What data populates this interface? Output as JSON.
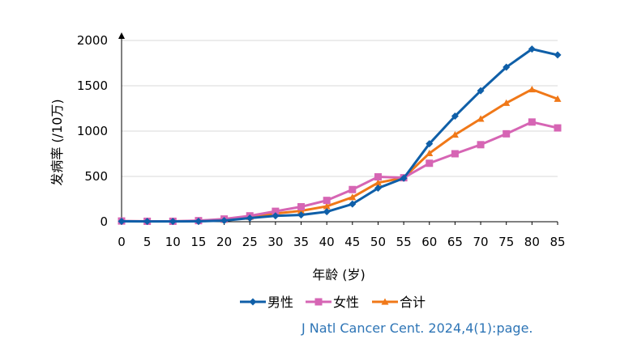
{
  "chart_data": {
    "type": "line",
    "title": "",
    "xlabel": "年龄 (岁)",
    "ylabel": "发病率 (/10万)",
    "x": [
      0,
      5,
      10,
      15,
      20,
      25,
      30,
      35,
      40,
      45,
      50,
      55,
      60,
      65,
      70,
      75,
      80,
      85
    ],
    "ylim": [
      0,
      2000
    ],
    "yticks": [
      0,
      500,
      1000,
      1500,
      2000
    ],
    "grid": true,
    "legend_position": "bottom",
    "series": [
      {
        "name": "男性",
        "color": "#0f5fa8",
        "marker": "diamond",
        "values": [
          5,
          3,
          3,
          5,
          12,
          40,
          65,
          75,
          110,
          195,
          370,
          480,
          860,
          1165,
          1445,
          1705,
          1905,
          1840
        ]
      },
      {
        "name": "女性",
        "color": "#d665b4",
        "marker": "square",
        "values": [
          8,
          5,
          5,
          12,
          30,
          65,
          115,
          165,
          235,
          355,
          495,
          485,
          645,
          750,
          850,
          970,
          1100,
          1035
        ]
      },
      {
        "name": "合计",
        "color": "#f07818",
        "marker": "triangle",
        "values": [
          6,
          4,
          4,
          8,
          20,
          52,
          90,
          120,
          170,
          270,
          430,
          485,
          755,
          960,
          1135,
          1310,
          1460,
          1355
        ]
      }
    ]
  },
  "source": "J Natl Cancer Cent. 2024,4(1):page."
}
